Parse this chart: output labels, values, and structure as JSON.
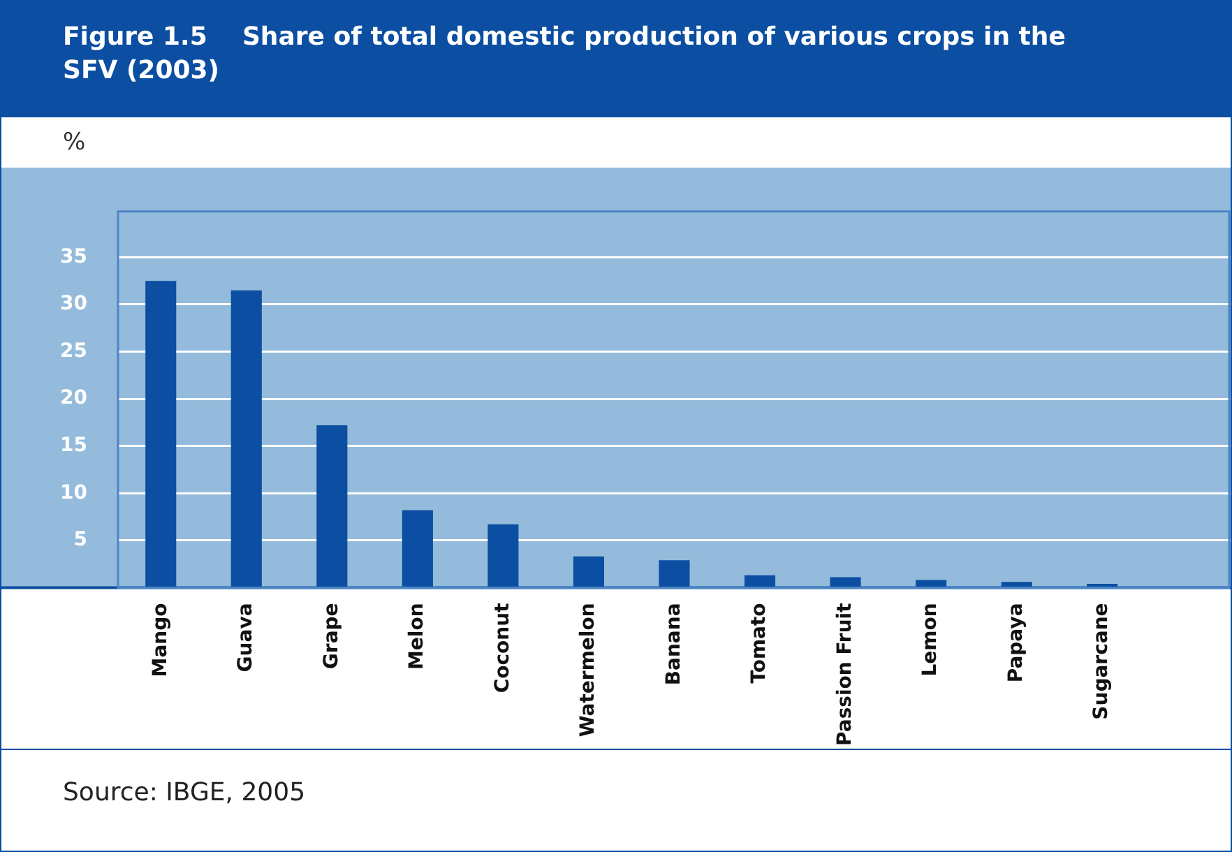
{
  "chart_data": {
    "type": "bar",
    "title": "Figure 1.5    Share of total domestic production of various crops in the SFV (2003)",
    "ylabel": "%",
    "categories": [
      "Mango",
      "Guava",
      "Grape",
      "Melon",
      "Coconut",
      "Watermelon",
      "Banana",
      "Tomato",
      "Passion Fruit",
      "Lemon",
      "Papaya",
      "Sugarcane",
      null
    ],
    "values": [
      32.5,
      31.5,
      17.2,
      8.2,
      6.7,
      3.3,
      2.9,
      1.3,
      1.1,
      0.8,
      0.6,
      0.4,
      0.1
    ],
    "color": "#0b4ea2",
    "ylim": [
      0,
      40
    ],
    "yticks": [
      5,
      10,
      15,
      20,
      25,
      30,
      35
    ],
    "grid": "y",
    "legend": false,
    "annotations": [
      "Source: IBGE, 2005"
    ]
  }
}
